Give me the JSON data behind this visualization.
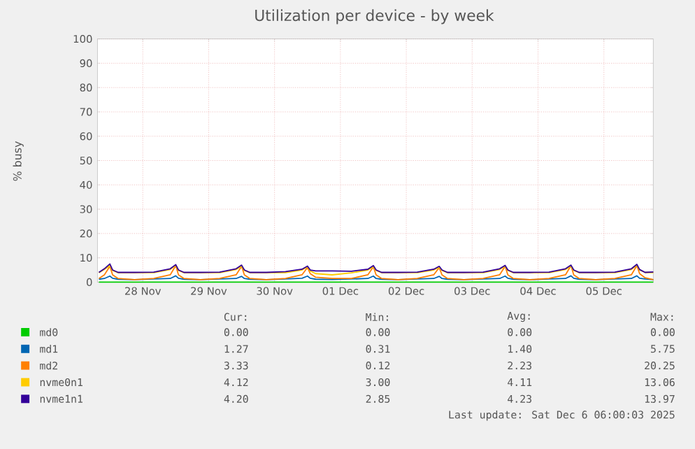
{
  "chart_data": {
    "type": "line",
    "title": "Utilization per device - by week",
    "ylabel": "% busy",
    "x": [
      "2025-11-27T20:00",
      "2025-11-27T22:00",
      "2025-11-28T00:00",
      "2025-11-28T01:00",
      "2025-11-28T03:00",
      "2025-11-28T09:00",
      "2025-11-28T16:00",
      "2025-11-28T22:00",
      "2025-11-29T00:00",
      "2025-11-29T01:00",
      "2025-11-29T03:00",
      "2025-11-29T09:00",
      "2025-11-29T16:00",
      "2025-11-29T22:00",
      "2025-11-30T00:00",
      "2025-11-30T01:00",
      "2025-11-30T03:00",
      "2025-11-30T09:00",
      "2025-11-30T16:00",
      "2025-11-30T22:00",
      "2025-12-01T00:00",
      "2025-12-01T01:00",
      "2025-12-01T03:00",
      "2025-12-01T09:00",
      "2025-12-01T16:00",
      "2025-12-01T22:00",
      "2025-12-02T00:00",
      "2025-12-02T01:00",
      "2025-12-02T03:00",
      "2025-12-02T09:00",
      "2025-12-02T16:00",
      "2025-12-02T22:00",
      "2025-12-03T00:00",
      "2025-12-03T01:00",
      "2025-12-03T03:00",
      "2025-12-03T09:00",
      "2025-12-03T16:00",
      "2025-12-03T22:00",
      "2025-12-04T00:00",
      "2025-12-04T01:00",
      "2025-12-04T03:00",
      "2025-12-04T09:00",
      "2025-12-04T16:00",
      "2025-12-04T22:00",
      "2025-12-05T00:00",
      "2025-12-05T01:00",
      "2025-12-05T03:00",
      "2025-12-05T09:00",
      "2025-12-05T16:00",
      "2025-12-05T22:00",
      "2025-12-06T00:00",
      "2025-12-06T01:00",
      "2025-12-06T03:00",
      "2025-12-06T06:00"
    ],
    "series": [
      {
        "name": "md0",
        "color": "#00cc00",
        "values": [
          0,
          0,
          0,
          0,
          0,
          0,
          0,
          0,
          0,
          0,
          0,
          0,
          0,
          0,
          0,
          0,
          0,
          0,
          0,
          0,
          0,
          0,
          0,
          0,
          0,
          0,
          0,
          0,
          0,
          0,
          0,
          0,
          0,
          0,
          0,
          0,
          0,
          0,
          0,
          0,
          0,
          0,
          0,
          0,
          0,
          0,
          0,
          0,
          0,
          0,
          0,
          0,
          0,
          0
        ]
      },
      {
        "name": "md1",
        "color": "#0066b3",
        "values": [
          1.2,
          1.5,
          2.5,
          1.6,
          1.2,
          1.0,
          1.3,
          1.5,
          2.6,
          1.6,
          1.2,
          1.0,
          1.3,
          1.5,
          2.4,
          1.5,
          1.2,
          1.0,
          1.3,
          1.6,
          2.5,
          1.6,
          1.2,
          1.1,
          1.3,
          1.5,
          2.5,
          1.5,
          1.2,
          1.0,
          1.3,
          1.5,
          2.4,
          1.5,
          1.2,
          1.0,
          1.3,
          1.5,
          2.5,
          1.6,
          1.2,
          1.0,
          1.3,
          1.5,
          2.6,
          1.6,
          1.2,
          1.0,
          1.3,
          1.5,
          2.6,
          1.6,
          1.3,
          1.0
        ]
      },
      {
        "name": "md2",
        "color": "#ff8000",
        "values": [
          1.5,
          3.0,
          6.5,
          3.0,
          1.5,
          1.0,
          1.5,
          3.0,
          6.8,
          3.0,
          1.5,
          1.0,
          1.5,
          3.0,
          6.5,
          3.0,
          1.5,
          1.0,
          1.5,
          3.0,
          6.0,
          3.5,
          2.0,
          1.5,
          1.5,
          3.0,
          6.3,
          3.0,
          1.5,
          1.0,
          1.5,
          3.0,
          6.0,
          3.0,
          1.5,
          1.0,
          1.5,
          3.0,
          6.5,
          3.0,
          1.5,
          1.0,
          1.5,
          3.0,
          6.8,
          3.0,
          1.5,
          1.0,
          1.5,
          3.0,
          6.8,
          3.5,
          1.8,
          1.0
        ]
      },
      {
        "name": "nvme0n1",
        "color": "#ffcc00",
        "values": [
          3.9,
          5.2,
          6.8,
          4.8,
          3.9,
          3.9,
          3.9,
          5.2,
          7.0,
          4.8,
          3.9,
          3.9,
          3.9,
          5.2,
          6.5,
          4.8,
          3.9,
          3.9,
          3.9,
          5.0,
          6.3,
          4.6,
          3.5,
          3.0,
          3.8,
          5.0,
          6.3,
          4.8,
          3.9,
          3.9,
          3.9,
          5.0,
          6.2,
          4.8,
          3.9,
          3.9,
          3.9,
          5.2,
          6.5,
          4.8,
          3.9,
          3.9,
          3.9,
          5.2,
          6.6,
          4.8,
          3.9,
          3.9,
          3.9,
          5.2,
          7.0,
          5.0,
          4.0,
          3.9
        ]
      },
      {
        "name": "nvme1n1",
        "color": "#330099",
        "values": [
          4.0,
          5.5,
          7.5,
          5.0,
          4.0,
          4.0,
          4.1,
          5.5,
          7.2,
          5.0,
          4.0,
          4.0,
          4.1,
          5.5,
          7.0,
          5.0,
          4.0,
          4.0,
          4.3,
          5.3,
          6.6,
          5.0,
          4.6,
          4.6,
          4.5,
          5.3,
          6.8,
          5.0,
          4.0,
          4.0,
          4.1,
          5.3,
          6.5,
          5.0,
          4.0,
          4.0,
          4.1,
          5.5,
          6.9,
          5.0,
          4.0,
          4.0,
          4.1,
          5.5,
          7.0,
          5.0,
          4.0,
          4.0,
          4.1,
          5.5,
          7.3,
          5.2,
          4.0,
          4.2
        ]
      }
    ],
    "xlim": [
      "2025-11-27T19:30",
      "2025-12-06T06:00"
    ],
    "xticks": [
      {
        "value": "2025-11-28T12:00",
        "label": "28 Nov"
      },
      {
        "value": "2025-11-29T12:00",
        "label": "29 Nov"
      },
      {
        "value": "2025-11-30T12:00",
        "label": "30 Nov"
      },
      {
        "value": "2025-12-01T12:00",
        "label": "01 Dec"
      },
      {
        "value": "2025-12-02T12:00",
        "label": "02 Dec"
      },
      {
        "value": "2025-12-03T12:00",
        "label": "03 Dec"
      },
      {
        "value": "2025-12-04T12:00",
        "label": "04 Dec"
      },
      {
        "value": "2025-12-05T12:00",
        "label": "05 Dec"
      }
    ],
    "ylim": [
      0,
      100
    ],
    "yticks": [
      0,
      10,
      20,
      30,
      40,
      50,
      60,
      70,
      80,
      90,
      100
    ],
    "grid": true,
    "legend": "bottom",
    "marker": "none",
    "line_style": "solid",
    "annotations": [
      "Cur:",
      "Min:",
      "Avg:",
      "Max:",
      "0.00",
      "0.00",
      "0.00",
      "0.00",
      "1.27",
      "0.31",
      "1.40",
      "5.75",
      "3.33",
      "0.12",
      "2.23",
      "20.25",
      "4.12",
      "3.00",
      "4.11",
      "13.06",
      "4.20",
      "2.85",
      "4.23",
      "13.97",
      "Last update: Sat Dec  6 06:00:03 2025"
    ]
  }
}
